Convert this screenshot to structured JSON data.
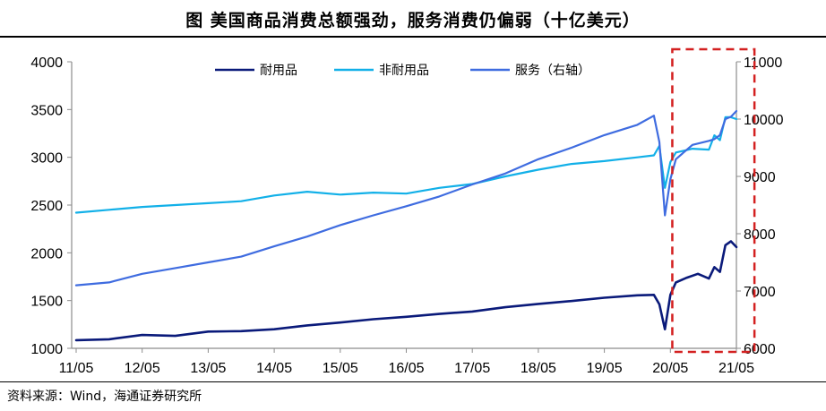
{
  "title": "图  美国商品消费总额强劲，服务消费仍偏弱（十亿美元）",
  "source": "资料来源：Wind，海通证券研究所",
  "colors": {
    "durable": "#0a1a7a",
    "nondurable": "#12b0e8",
    "services": "#3f6ce0",
    "highlight": "#d32020",
    "axis": "#8c8c8c"
  },
  "chart_data": {
    "type": "line",
    "x_tick_labels": [
      "11/05",
      "12/05",
      "13/05",
      "14/05",
      "15/05",
      "16/05",
      "17/05",
      "18/05",
      "19/05",
      "20/05",
      "21/05"
    ],
    "x_range": [
      "2011-05",
      "2021-05"
    ],
    "y_left": {
      "ticks": [
        "1000",
        "1500",
        "2000",
        "2500",
        "3000",
        "3500",
        "4000"
      ],
      "range": [
        1000,
        4000
      ]
    },
    "y_right": {
      "ticks": [
        "6000",
        "7000",
        "8000",
        "9000",
        "10000",
        "11000"
      ],
      "range": [
        6000,
        11000
      ]
    },
    "highlight_region": {
      "from": "2020-06",
      "to": "2021-06"
    },
    "series": [
      {
        "name": "耐用品",
        "axis": "left",
        "color": "#0a1a7a",
        "points": [
          [
            "2011-05",
            1085
          ],
          [
            "2011-11",
            1095
          ],
          [
            "2012-05",
            1140
          ],
          [
            "2012-11",
            1130
          ],
          [
            "2013-05",
            1175
          ],
          [
            "2013-11",
            1180
          ],
          [
            "2014-05",
            1200
          ],
          [
            "2014-11",
            1240
          ],
          [
            "2015-05",
            1270
          ],
          [
            "2015-11",
            1305
          ],
          [
            "2016-05",
            1330
          ],
          [
            "2016-11",
            1360
          ],
          [
            "2017-05",
            1385
          ],
          [
            "2017-11",
            1430
          ],
          [
            "2018-05",
            1465
          ],
          [
            "2018-11",
            1495
          ],
          [
            "2019-05",
            1530
          ],
          [
            "2019-11",
            1555
          ],
          [
            "2020-02",
            1560
          ],
          [
            "2020-03",
            1460
          ],
          [
            "2020-04",
            1200
          ],
          [
            "2020-05",
            1560
          ],
          [
            "2020-06",
            1690
          ],
          [
            "2020-08",
            1740
          ],
          [
            "2020-10",
            1780
          ],
          [
            "2020-12",
            1730
          ],
          [
            "2021-01",
            1850
          ],
          [
            "2021-02",
            1800
          ],
          [
            "2021-03",
            2080
          ],
          [
            "2021-04",
            2120
          ],
          [
            "2021-05",
            2060
          ]
        ]
      },
      {
        "name": "非耐用品",
        "axis": "left",
        "color": "#12b0e8",
        "points": [
          [
            "2011-05",
            2420
          ],
          [
            "2011-11",
            2450
          ],
          [
            "2012-05",
            2480
          ],
          [
            "2012-11",
            2500
          ],
          [
            "2013-05",
            2520
          ],
          [
            "2013-11",
            2540
          ],
          [
            "2014-05",
            2600
          ],
          [
            "2014-11",
            2640
          ],
          [
            "2015-05",
            2610
          ],
          [
            "2015-11",
            2630
          ],
          [
            "2016-05",
            2620
          ],
          [
            "2016-11",
            2680
          ],
          [
            "2017-05",
            2720
          ],
          [
            "2017-11",
            2800
          ],
          [
            "2018-05",
            2870
          ],
          [
            "2018-11",
            2930
          ],
          [
            "2019-05",
            2960
          ],
          [
            "2019-11",
            3000
          ],
          [
            "2020-02",
            3020
          ],
          [
            "2020-03",
            3120
          ],
          [
            "2020-04",
            2680
          ],
          [
            "2020-05",
            2950
          ],
          [
            "2020-06",
            3050
          ],
          [
            "2020-09",
            3090
          ],
          [
            "2020-12",
            3080
          ],
          [
            "2021-01",
            3230
          ],
          [
            "2021-02",
            3180
          ],
          [
            "2021-03",
            3420
          ],
          [
            "2021-04",
            3420
          ],
          [
            "2021-05",
            3400
          ]
        ]
      },
      {
        "name": "服务（右轴）",
        "axis": "right",
        "color": "#3f6ce0",
        "points": [
          [
            "2011-05",
            7100
          ],
          [
            "2011-11",
            7150
          ],
          [
            "2012-05",
            7300
          ],
          [
            "2012-11",
            7400
          ],
          [
            "2013-05",
            7500
          ],
          [
            "2013-11",
            7600
          ],
          [
            "2014-05",
            7780
          ],
          [
            "2014-11",
            7950
          ],
          [
            "2015-05",
            8150
          ],
          [
            "2015-11",
            8320
          ],
          [
            "2016-05",
            8480
          ],
          [
            "2016-11",
            8650
          ],
          [
            "2017-05",
            8860
          ],
          [
            "2017-11",
            9050
          ],
          [
            "2018-05",
            9300
          ],
          [
            "2018-11",
            9500
          ],
          [
            "2019-05",
            9720
          ],
          [
            "2019-11",
            9900
          ],
          [
            "2020-02",
            10060
          ],
          [
            "2020-03",
            9600
          ],
          [
            "2020-04",
            8320
          ],
          [
            "2020-05",
            8950
          ],
          [
            "2020-06",
            9300
          ],
          [
            "2020-09",
            9550
          ],
          [
            "2020-12",
            9620
          ],
          [
            "2021-01",
            9650
          ],
          [
            "2021-02",
            9720
          ],
          [
            "2021-03",
            10000
          ],
          [
            "2021-04",
            10040
          ],
          [
            "2021-05",
            10140
          ]
        ]
      }
    ]
  }
}
